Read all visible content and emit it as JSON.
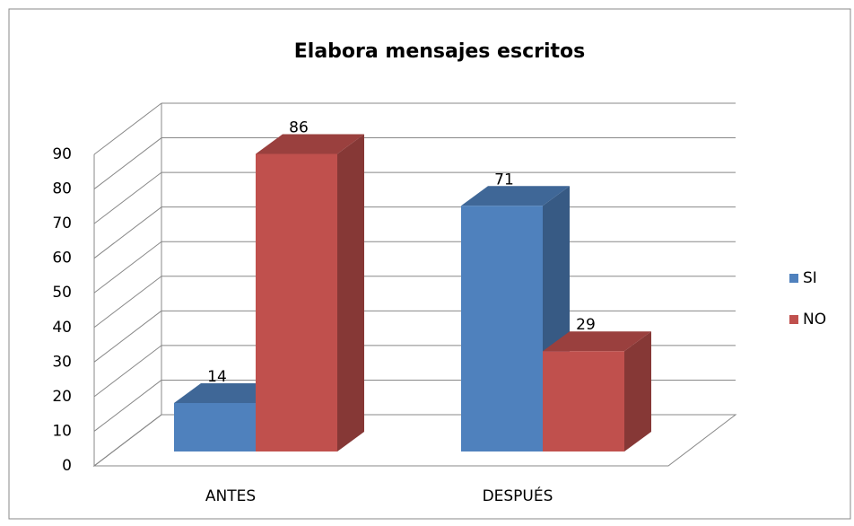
{
  "chart_data": {
    "type": "bar3d",
    "title": "Elabora mensajes escritos",
    "categories": [
      "ANTES",
      "DESPUÉS"
    ],
    "series": [
      {
        "name": "SI",
        "color": "#4f81bd",
        "values": [
          14,
          71
        ]
      },
      {
        "name": "NO",
        "color": "#c0504d",
        "values": [
          86,
          29
        ]
      }
    ],
    "ylim": [
      0,
      90
    ],
    "yticks": [
      0,
      10,
      20,
      30,
      40,
      50,
      60,
      70,
      80,
      90
    ],
    "grid": true,
    "legend": "right"
  }
}
